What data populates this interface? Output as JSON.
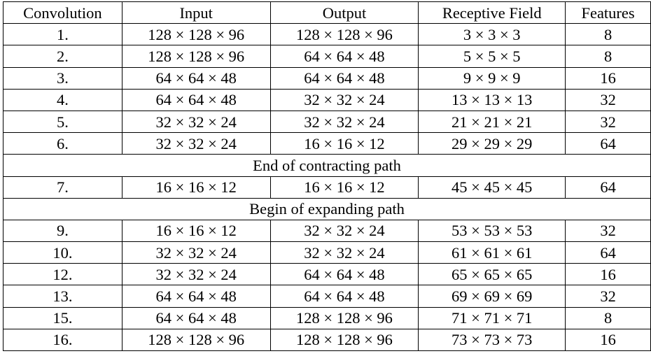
{
  "table": {
    "headers": [
      "Convolution",
      "Input",
      "Output",
      "Receptive Field",
      "Features"
    ],
    "rows_part1": [
      [
        "1.",
        "128 × 128 × 96",
        "128 × 128 × 96",
        "3 × 3 × 3",
        "8"
      ],
      [
        "2.",
        "128 × 128 × 96",
        "64 × 64 × 48",
        "5 × 5 × 5",
        "8"
      ],
      [
        "3.",
        "64 × 64 × 48",
        "64 × 64 × 48",
        "9 × 9 × 9",
        "16"
      ],
      [
        "4.",
        "64 × 64 × 48",
        "32 × 32 × 24",
        "13 × 13 × 13",
        "32"
      ],
      [
        "5.",
        "32 × 32 × 24",
        "32 × 32 × 24",
        "21 × 21 × 21",
        "32"
      ],
      [
        "6.",
        "32 × 32 × 24",
        "16 × 16 × 12",
        "29 × 29 × 29",
        "64"
      ]
    ],
    "section_contracting": "End of contracting path",
    "rows_part2": [
      [
        "7.",
        "16 × 16 × 12",
        "16 × 16 × 12",
        "45 × 45 × 45",
        "64"
      ]
    ],
    "section_expanding": "Begin of expanding path",
    "rows_part3": [
      [
        "9.",
        "16 × 16 × 12",
        "32 × 32 × 24",
        "53 × 53 × 53",
        "32"
      ],
      [
        "10.",
        "32 × 32 × 24",
        "32 × 32 × 24",
        "61 × 61 × 61",
        "64"
      ],
      [
        "12.",
        "32 × 32 × 24",
        "64 × 64 × 48",
        "65 × 65 × 65",
        "16"
      ],
      [
        "13.",
        "64 × 64 × 48",
        "64 × 64 × 48",
        "69 × 69 × 69",
        "32"
      ],
      [
        "15.",
        "64 × 64 × 48",
        "128 × 128 × 96",
        "71 × 71 × 71",
        "8"
      ],
      [
        "16.",
        "128 × 128 × 96",
        "128 × 128 × 96",
        "73 × 73 × 73",
        "16"
      ]
    ]
  }
}
